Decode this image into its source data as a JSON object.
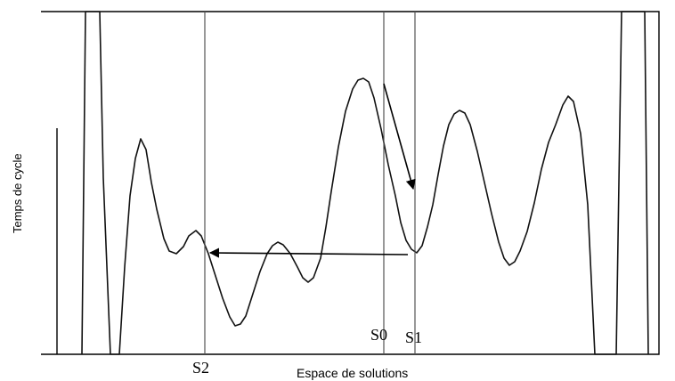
{
  "axes": {
    "y_label": "Temps de cycle",
    "x_label": "Espace de solutions"
  },
  "markers": [
    {
      "id": "S2",
      "label": "S2"
    },
    {
      "id": "S0",
      "label": "S0"
    },
    {
      "id": "S1",
      "label": "S1"
    }
  ],
  "arrows": [
    {
      "from": "S0",
      "to": "S1"
    },
    {
      "from": "S1",
      "to": "S2"
    }
  ],
  "colors": {
    "ink": "#000000",
    "marker_line": "#555555",
    "background": "#ffffff"
  }
}
